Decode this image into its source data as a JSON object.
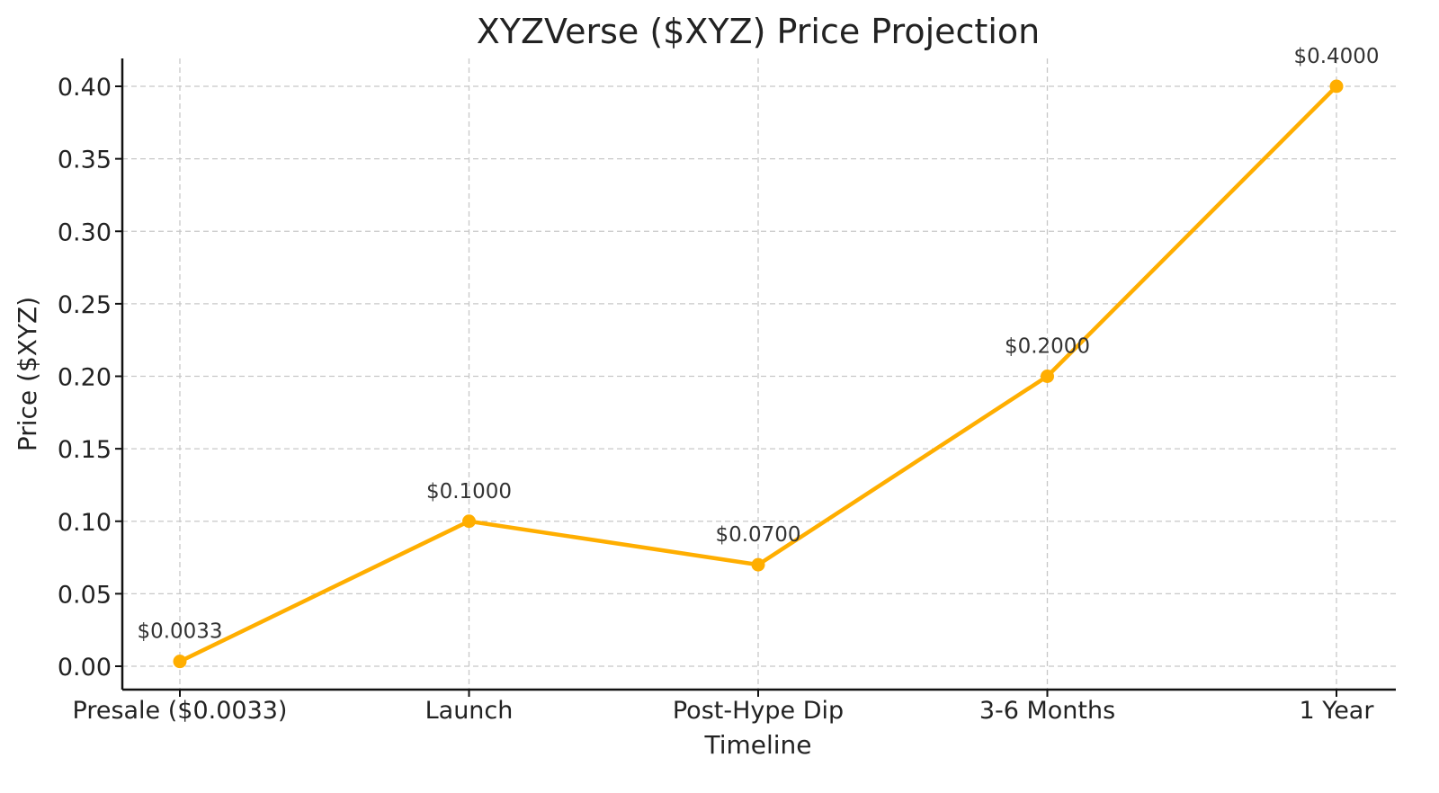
{
  "chart_data": {
    "type": "line",
    "title": "XYZVerse ($XYZ) Price Projection",
    "xlabel": "Timeline",
    "ylabel": "Price ($XYZ)",
    "categories": [
      "Presale ($0.0033)",
      "Launch",
      "Post-Hype Dip",
      "3-6 Months",
      "1 Year"
    ],
    "values": [
      0.0033,
      0.1,
      0.07,
      0.2,
      0.4
    ],
    "data_labels": [
      "$0.0033",
      "$0.1000",
      "$0.0700",
      "$0.2000",
      "$0.4000"
    ],
    "ylim": [
      -0.015,
      0.42
    ],
    "yticks": [
      "0.00",
      "0.05",
      "0.10",
      "0.15",
      "0.20",
      "0.25",
      "0.30",
      "0.35",
      "0.40"
    ],
    "ytick_values": [
      0,
      0.05,
      0.1,
      0.15,
      0.2,
      0.25,
      0.3,
      0.35,
      0.4
    ],
    "grid": true,
    "legend": null,
    "line_color": "#FFAE00"
  }
}
